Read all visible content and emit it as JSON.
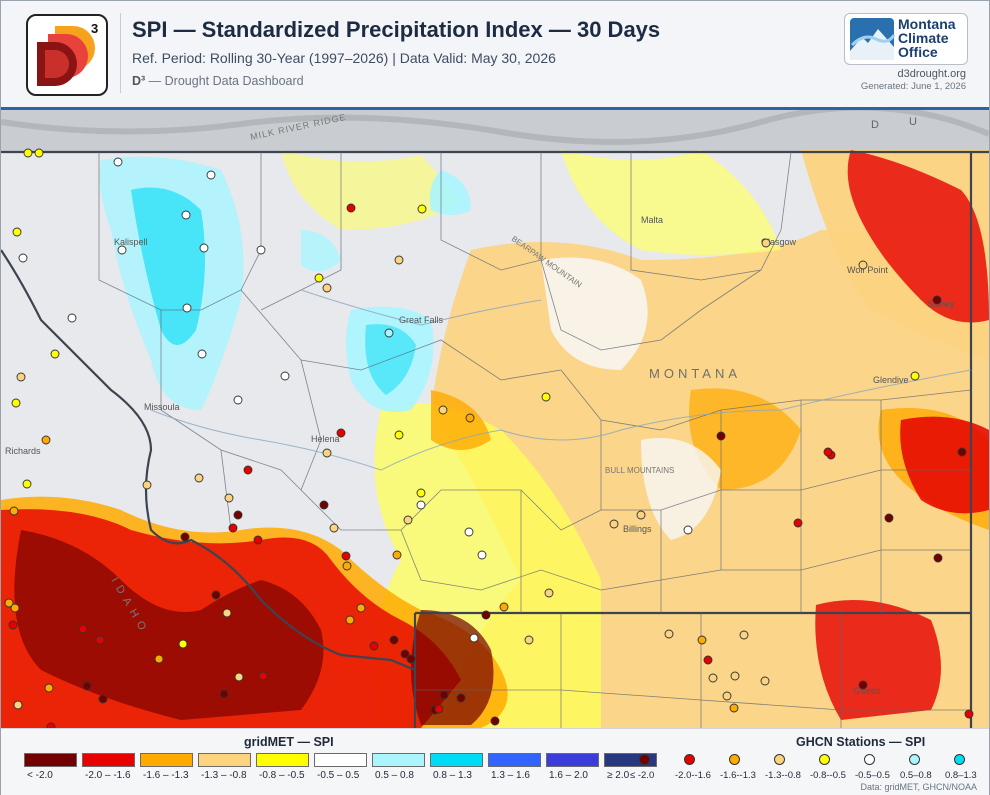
{
  "header": {
    "logo_text": "D",
    "logo_superscript": "3",
    "title": "SPI — Standardized Precipitation Index — 30 Days",
    "subtitle": "Ref. Period: Rolling 30-Year (1997–2026)  |  Data Valid: May 30, 2026",
    "dash_mark": "D³",
    "dash_text": " — Drought Data Dashboard",
    "partner_logo": [
      "Montana",
      "Climate",
      "Office"
    ],
    "site": "d3drought.org",
    "generated": "Generated: June 1, 2026"
  },
  "map": {
    "place_labels": [
      "Kalispell",
      "Missoula",
      "Helena",
      "Great Falls",
      "Malta",
      "Glasgow",
      "Wolf Point",
      "Sidney",
      "Glendive",
      "Billings",
      "Gillette",
      "Richards"
    ],
    "feature_labels": [
      "MONTANA",
      "MILK RIVER RIDGE",
      "BEARPAW MOUNTAIN",
      "BULL MOUNTAINS",
      "IDAHO",
      "D",
      "U"
    ]
  },
  "legend": {
    "grid_title": "gridMET — SPI",
    "grid_classes": [
      {
        "label": "< -2.0",
        "color": "#730000"
      },
      {
        "label": "-2.0 – -1.6",
        "color": "#e60000"
      },
      {
        "label": "-1.6 – -1.3",
        "color": "#ffaa00"
      },
      {
        "label": "-1.3 – -0.8",
        "color": "#fcd37f"
      },
      {
        "label": "-0.8 – -0.5",
        "color": "#ffff00"
      },
      {
        "label": "-0.5 – 0.5",
        "color": "#ffffff"
      },
      {
        "label": "0.5 – 0.8",
        "color": "#aaf5ff"
      },
      {
        "label": "0.8 – 1.3",
        "color": "#00dcf5"
      },
      {
        "label": "1.3 – 1.6",
        "color": "#3264ff"
      },
      {
        "label": "1.6 – 2.0",
        "color": "#3c3cdc"
      },
      {
        "label": "≥ 2.0",
        "color": "#283780"
      }
    ],
    "ghcn_title": "GHCN Stations — SPI",
    "ghcn_classes": [
      {
        "label": "≤ -2.0",
        "color": "#730000"
      },
      {
        "label": "-2.0--1.6",
        "color": "#e60000"
      },
      {
        "label": "-1.6--1.3",
        "color": "#ffaa00"
      },
      {
        "label": "-1.3--0.8",
        "color": "#fcd37f"
      },
      {
        "label": "-0.8--0.5",
        "color": "#ffff00"
      },
      {
        "label": "-0.5–0.5",
        "color": "#ffffff"
      },
      {
        "label": "0.5–0.8",
        "color": "#aaf5ff"
      },
      {
        "label": "0.8–1.3",
        "color": "#00dcf5"
      }
    ],
    "source": "Data: gridMET, GHCN/NOAA"
  }
}
